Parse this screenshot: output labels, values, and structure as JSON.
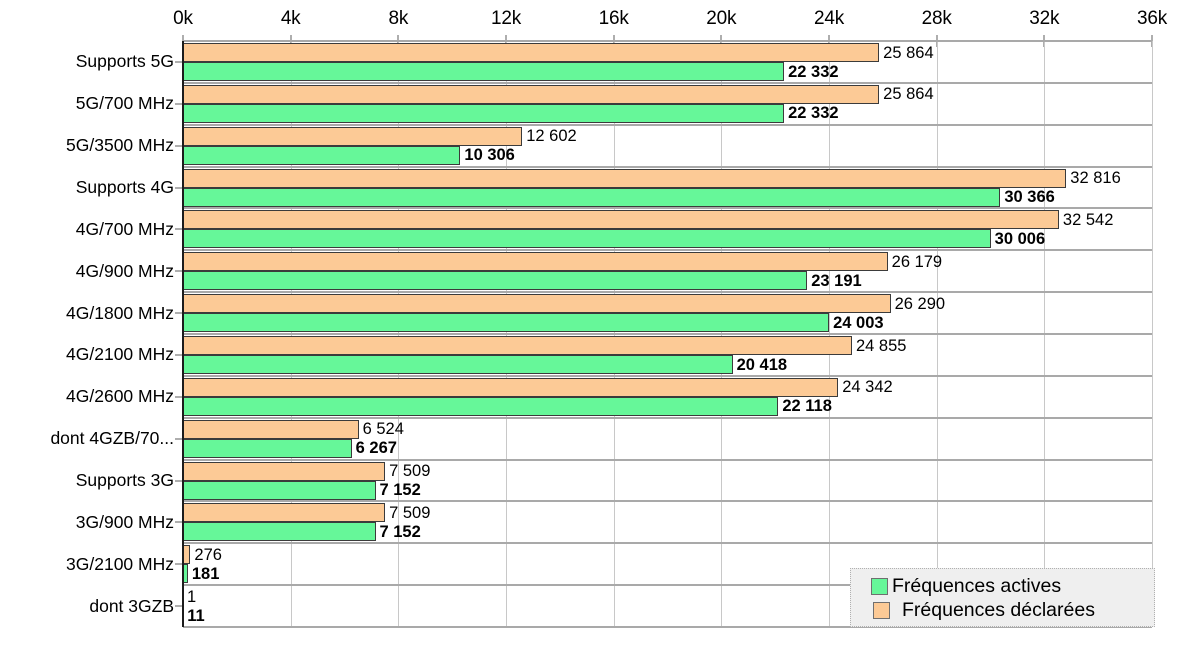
{
  "chart_data": {
    "type": "bar",
    "orientation": "horizontal",
    "title": "",
    "xlabel": "",
    "ylabel": "",
    "xlim": [
      0,
      36000
    ],
    "grid": true,
    "x_axis_position": "top",
    "x_tick_labels": [
      "0k",
      "4k",
      "8k",
      "12k",
      "16k",
      "20k",
      "24k",
      "28k",
      "32k",
      "36k"
    ],
    "x_tick_values": [
      0,
      4000,
      8000,
      12000,
      16000,
      20000,
      24000,
      28000,
      32000,
      36000
    ],
    "categories": [
      "Supports 5G",
      "5G/700 MHz",
      "5G/3500 MHz",
      "Supports 4G",
      "4G/700 MHz",
      "4G/900 MHz",
      "4G/1800 MHz",
      "4G/2100 MHz",
      "4G/2600 MHz",
      "dont 4GZB/70...",
      "Supports 3G",
      "3G/900 MHz",
      "3G/2100 MHz",
      "dont 3GZB"
    ],
    "series": [
      {
        "name": "Fréquences actives",
        "color": "#66F799",
        "label_bold": true,
        "values": [
          22332,
          22332,
          10306,
          30366,
          30006,
          23191,
          24003,
          20418,
          22118,
          6267,
          7152,
          7152,
          181,
          11
        ],
        "labels": [
          "22 332",
          "22 332",
          "10 306",
          "30 366",
          "30 006",
          "23 191",
          "24 003",
          "20 418",
          "22 118",
          "6 267",
          "7 152",
          "7 152",
          "181",
          "11"
        ]
      },
      {
        "name": "Fréquences déclarées",
        "color": "#FCCA96",
        "label_bold": false,
        "values": [
          25864,
          25864,
          12602,
          32816,
          32542,
          26179,
          26290,
          24855,
          24342,
          6524,
          7509,
          7509,
          276,
          1
        ],
        "labels": [
          "25 864",
          "25 864",
          "12 602",
          "32 816",
          "32 542",
          "26 179",
          "26 290",
          "24 855",
          "24 342",
          "6 524",
          "7 509",
          "7 509",
          "276",
          "1"
        ]
      }
    ],
    "bar_order_top_to_bottom": [
      "Fréquences déclarées",
      "Fréquences actives"
    ],
    "legend": {
      "position": "bottom-right",
      "items": [
        {
          "label": "Fréquences actives",
          "color": "#66F799"
        },
        {
          "label": "Fréquences déclarées",
          "color": "#FCCA96"
        }
      ]
    },
    "colors": {
      "active_bar": "#66F799",
      "declared_bar": "#FCCA96",
      "bar_border": "#3B3B3B",
      "grid_vertical": "#C8C8C8",
      "grid_horizontal": "#A9A9A9",
      "axis_line": "#1C1C1C",
      "tick": "#AEAEAE",
      "legend_background": "#EFEFEF",
      "text": "#000000"
    }
  }
}
